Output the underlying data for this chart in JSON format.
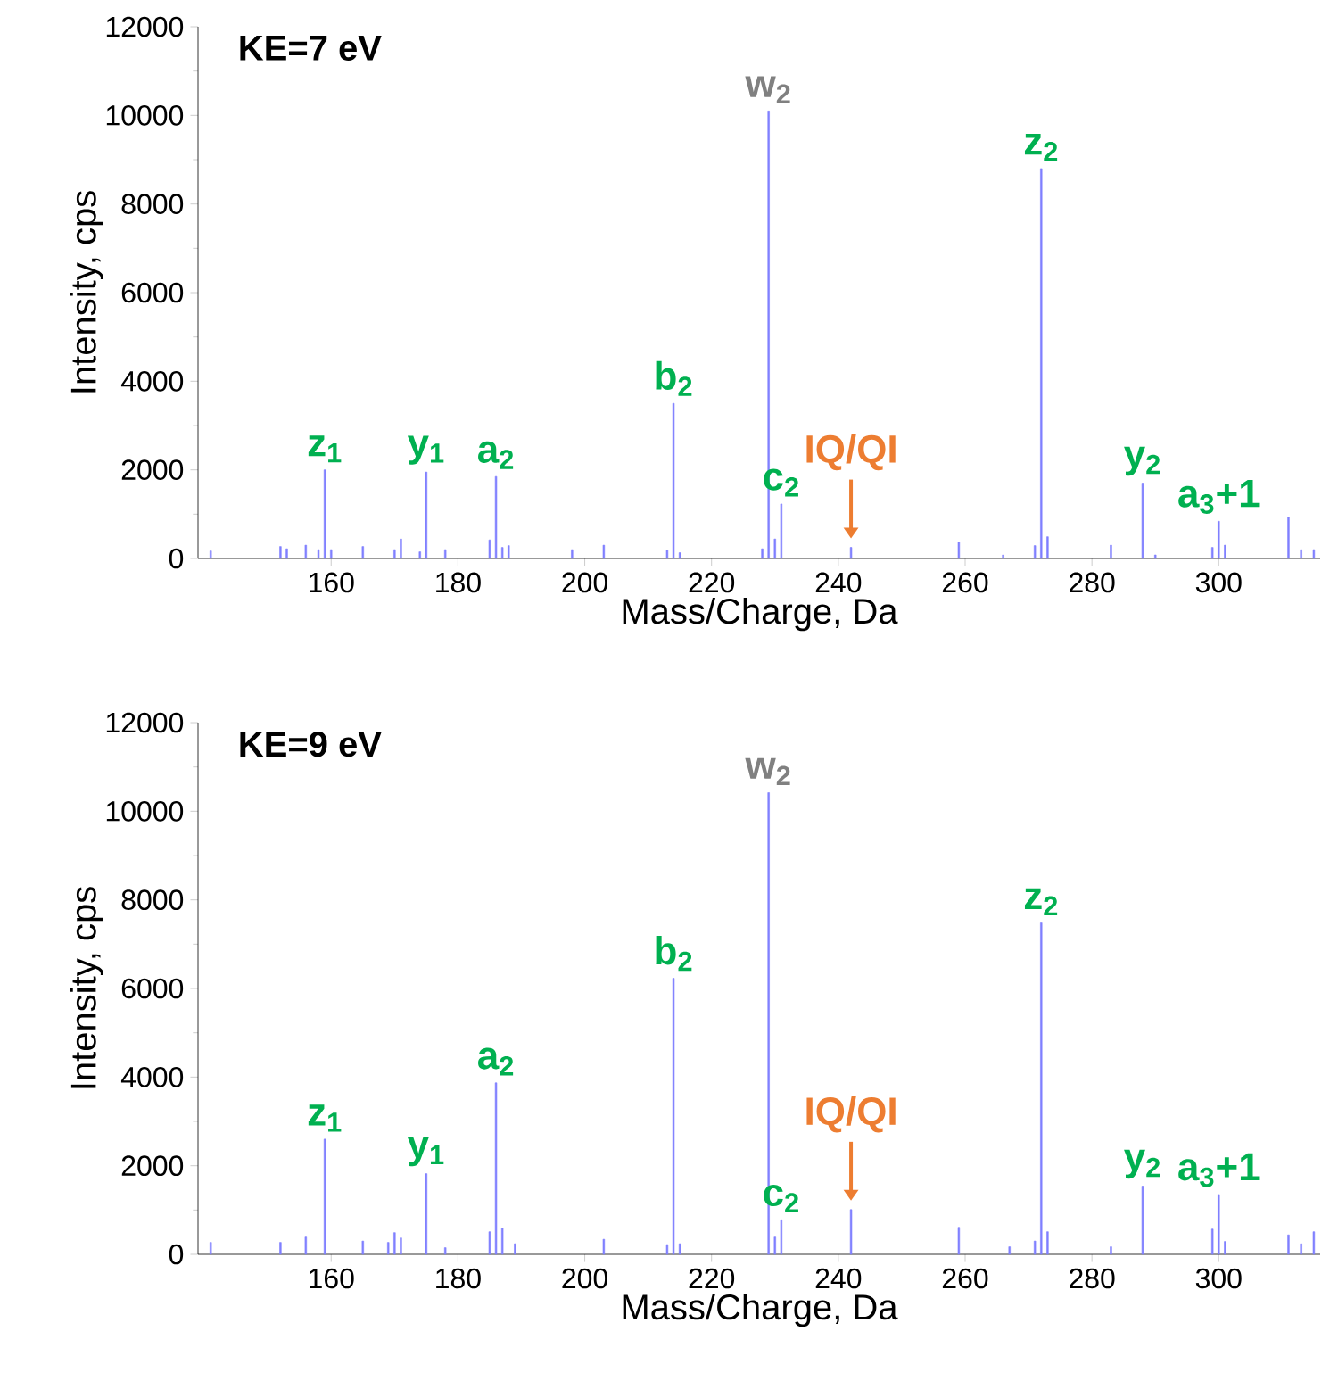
{
  "chart_data": [
    {
      "type": "bar",
      "title": "KE=7 eV",
      "xlabel": "Mass/Charge, Da",
      "ylabel": "Intensity, cps",
      "color": "#8080ff",
      "x": [
        141,
        152,
        153,
        156,
        158,
        159,
        160,
        165,
        170,
        171,
        174,
        175,
        178,
        185,
        186,
        187,
        188,
        198,
        203,
        213,
        214,
        215,
        228,
        229,
        230,
        231,
        242,
        259,
        266,
        271,
        272,
        273,
        283,
        288,
        290,
        299,
        300,
        301,
        311,
        313,
        315
      ],
      "values": [
        170,
        270,
        220,
        300,
        200,
        2000,
        200,
        270,
        200,
        440,
        150,
        1950,
        200,
        420,
        1850,
        250,
        290,
        200,
        300,
        190,
        3500,
        130,
        220,
        10100,
        440,
        1230,
        250,
        370,
        80,
        290,
        8800,
        490,
        300,
        1700,
        80,
        250,
        840,
        300,
        930,
        200,
        200
      ],
      "xlim": [
        139,
        316
      ],
      "ylim": [
        0,
        12000
      ],
      "xticks": [
        160,
        180,
        200,
        220,
        240,
        260,
        280,
        300
      ],
      "yticks": [
        0,
        2000,
        4000,
        6000,
        8000,
        10000,
        12000
      ],
      "annotations": [
        {
          "text": "z$_{1}$",
          "x": 159,
          "y": 2000
        },
        {
          "text": "y$_{1}$",
          "x": 175,
          "y": 1950
        },
        {
          "text": "a$_{2}$",
          "x": 186,
          "y": 1850
        },
        {
          "text": "b$_{2}$",
          "x": 214,
          "y": 3500
        },
        {
          "text": "w$_{2}$",
          "x": 229,
          "y": 10100
        },
        {
          "text": "c$_{2}$",
          "x": 231,
          "y": 1230
        },
        {
          "text": "IQ/QI",
          "x": 242,
          "y": 250
        },
        {
          "text": "z$_{2}$",
          "x": 272,
          "y": 8800
        },
        {
          "text": "y$_{2}$",
          "x": 288,
          "y": 1700
        },
        {
          "text": "a$_{3}$+1",
          "x": 300,
          "y": 840
        }
      ]
    },
    {
      "type": "bar",
      "title": "KE=9 eV",
      "xlabel": "Mass/Charge, Da",
      "ylabel": "Intensity, cps",
      "color": "#8080ff",
      "x": [
        141,
        152,
        156,
        159,
        165,
        169,
        170,
        171,
        175,
        178,
        185,
        186,
        187,
        189,
        203,
        213,
        214,
        215,
        229,
        230,
        231,
        242,
        259,
        267,
        271,
        272,
        273,
        283,
        288,
        299,
        300,
        301,
        311,
        313,
        315
      ],
      "values": [
        270,
        270,
        390,
        2600,
        300,
        270,
        490,
        370,
        1820,
        150,
        510,
        3870,
        590,
        240,
        340,
        220,
        6230,
        240,
        10420,
        390,
        780,
        1010,
        610,
        170,
        300,
        7480,
        510,
        170,
        1540,
        570,
        1350,
        290,
        440,
        240,
        510
      ],
      "xlim": [
        139,
        316
      ],
      "ylim": [
        0,
        12000
      ],
      "xticks": [
        160,
        180,
        200,
        220,
        240,
        260,
        280,
        300
      ],
      "yticks": [
        0,
        2000,
        4000,
        6000,
        8000,
        10000,
        12000
      ],
      "annotations": [
        {
          "text": "z$_{1}$",
          "x": 159,
          "y": 2600
        },
        {
          "text": "y$_{1}$",
          "x": 175,
          "y": 1820
        },
        {
          "text": "a$_{2}$",
          "x": 186,
          "y": 3870
        },
        {
          "text": "b$_{2}$",
          "x": 214,
          "y": 6230
        },
        {
          "text": "w$_{2}$",
          "x": 229,
          "y": 10420
        },
        {
          "text": "c$_{2}$",
          "x": 231,
          "y": 780
        },
        {
          "text": "IQ/QI",
          "x": 242,
          "y": 1010
        },
        {
          "text": "z$_{2}$",
          "x": 272,
          "y": 7480
        },
        {
          "text": "y$_{2}$",
          "x": 288,
          "y": 1540
        },
        {
          "text": "a$_{3}$+1",
          "x": 300,
          "y": 1350
        }
      ]
    }
  ]
}
